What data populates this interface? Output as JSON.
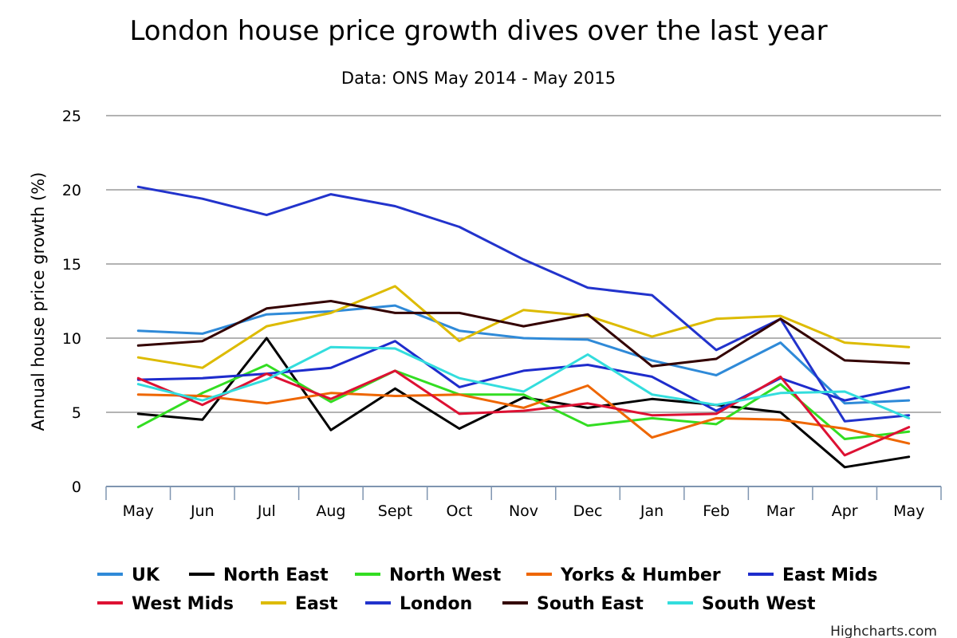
{
  "chart_data": {
    "type": "line",
    "title": "London house price growth dives over the last year",
    "subtitle": "Data: ONS May 2014 - May 2015",
    "xlabel": "",
    "ylabel": "Annual house price growth (%)",
    "ylim": [
      0,
      25
    ],
    "yticks": [
      0,
      5,
      10,
      15,
      20,
      25
    ],
    "grid": true,
    "legend_position": "bottom",
    "credit": "Highcharts.com",
    "categories": [
      "May",
      "Jun",
      "Jul",
      "Aug",
      "Sept",
      "Oct",
      "Nov",
      "Dec",
      "Jan",
      "Feb",
      "Mar",
      "Apr",
      "May"
    ],
    "series": [
      {
        "name": "UK",
        "color": "#2f8ad8",
        "values": [
          10.5,
          10.3,
          11.6,
          11.8,
          12.2,
          10.5,
          10.0,
          9.9,
          8.5,
          7.5,
          9.7,
          5.6,
          5.8
        ]
      },
      {
        "name": "North East",
        "color": "#000000",
        "values": [
          4.9,
          4.5,
          10.0,
          3.8,
          6.6,
          3.9,
          6.0,
          5.3,
          5.9,
          5.5,
          5.0,
          1.3,
          2.0
        ]
      },
      {
        "name": "North West",
        "color": "#33dd22",
        "values": [
          4.0,
          6.3,
          8.2,
          5.7,
          7.8,
          6.2,
          6.2,
          4.1,
          4.6,
          4.2,
          6.9,
          3.2,
          3.7
        ]
      },
      {
        "name": "Yorks & Humber",
        "color": "#ee6600",
        "values": [
          6.2,
          6.1,
          5.6,
          6.3,
          6.1,
          6.2,
          5.3,
          6.8,
          3.3,
          4.6,
          4.5,
          3.9,
          2.9
        ]
      },
      {
        "name": "East Mids",
        "color": "#1e2ccc",
        "values": [
          7.2,
          7.3,
          7.6,
          8.0,
          9.8,
          6.7,
          7.8,
          8.2,
          7.4,
          5.1,
          7.3,
          5.8,
          6.7
        ]
      },
      {
        "name": "West Mids",
        "color": "#dd1133",
        "values": [
          7.3,
          5.5,
          7.6,
          5.9,
          7.8,
          4.9,
          5.1,
          5.6,
          4.8,
          4.9,
          7.4,
          2.1,
          4.0
        ]
      },
      {
        "name": "East",
        "color": "#ddbb00",
        "values": [
          8.7,
          8.0,
          10.8,
          11.7,
          13.5,
          9.8,
          11.9,
          11.5,
          10.1,
          11.3,
          11.5,
          9.7,
          9.4
        ]
      },
      {
        "name": "London",
        "color": "#2233cc",
        "values": [
          20.2,
          19.4,
          18.3,
          19.7,
          18.9,
          17.5,
          15.3,
          13.4,
          12.9,
          9.2,
          11.3,
          4.4,
          4.8
        ]
      },
      {
        "name": "South East",
        "color": "#330000",
        "values": [
          9.5,
          9.8,
          12.0,
          12.5,
          11.7,
          11.7,
          10.8,
          11.6,
          8.1,
          8.6,
          11.3,
          8.5,
          8.3
        ]
      },
      {
        "name": "South West",
        "color": "#33dddd",
        "values": [
          6.9,
          5.8,
          7.2,
          9.4,
          9.3,
          7.3,
          6.4,
          8.9,
          6.2,
          5.5,
          6.3,
          6.4,
          4.6
        ]
      }
    ]
  }
}
